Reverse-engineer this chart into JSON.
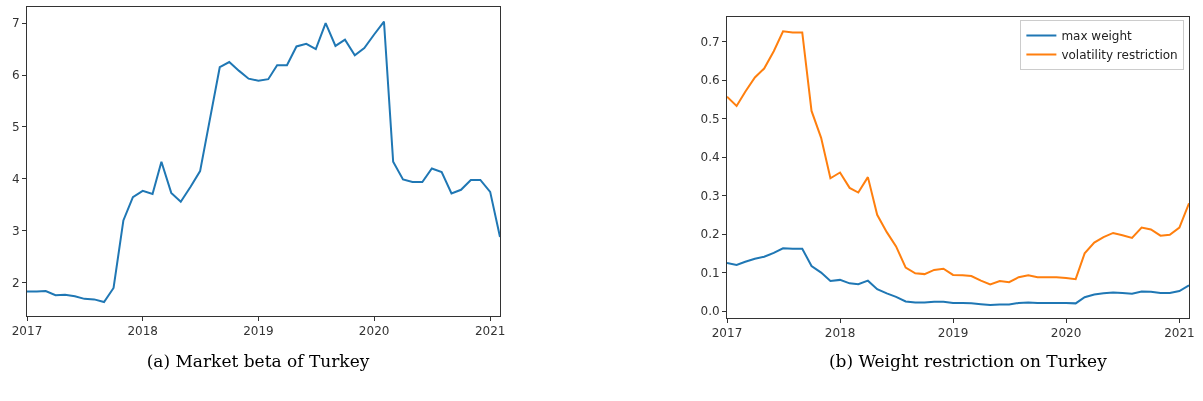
{
  "chart_data": [
    {
      "type": "line",
      "title": "(a) Market beta of Turkey",
      "x": [
        "2017-01",
        "2017-02",
        "2017-03",
        "2017-04",
        "2017-05",
        "2017-06",
        "2017-07",
        "2017-08",
        "2017-09",
        "2017-10",
        "2017-11",
        "2017-12",
        "2018-01",
        "2018-02",
        "2018-03",
        "2018-04",
        "2018-05",
        "2018-06",
        "2018-07",
        "2018-08",
        "2018-09",
        "2018-10",
        "2018-11",
        "2018-12",
        "2019-01",
        "2019-02",
        "2019-03",
        "2019-04",
        "2019-05",
        "2019-06",
        "2019-07",
        "2019-08",
        "2019-09",
        "2019-10",
        "2019-11",
        "2019-12",
        "2020-01",
        "2020-02",
        "2020-03",
        "2020-04",
        "2020-05",
        "2020-06",
        "2020-07",
        "2020-08",
        "2020-09",
        "2020-10",
        "2020-11",
        "2020-12",
        "2021-01",
        "2021-02"
      ],
      "series": [
        {
          "color": "#1f77b4",
          "values": [
            1.83,
            1.83,
            1.84,
            1.76,
            1.77,
            1.74,
            1.69,
            1.68,
            1.63,
            1.9,
            3.2,
            3.65,
            3.77,
            3.71,
            4.33,
            3.73,
            3.56,
            3.85,
            4.15,
            5.15,
            6.15,
            6.25,
            6.08,
            5.93,
            5.89,
            5.92,
            6.19,
            6.19,
            6.55,
            6.6,
            6.5,
            7.0,
            6.56,
            6.68,
            6.38,
            6.52,
            6.78,
            7.03,
            4.33,
            3.99,
            3.94,
            3.94,
            4.2,
            4.13,
            3.72,
            3.79,
            3.98,
            3.98,
            3.75,
            2.88
          ]
        }
      ],
      "xlim": [
        "2017-01",
        "2021-02"
      ],
      "xticks": [
        "2017",
        "2018",
        "2019",
        "2020",
        "2021"
      ],
      "ylim": [
        1.36,
        7.31
      ],
      "yticks": [
        2,
        3,
        4,
        5,
        6,
        7
      ],
      "grid": false,
      "legend": false,
      "line_style": "solid",
      "marker": "none"
    },
    {
      "type": "line",
      "title": "(b) Weight restriction on Turkey",
      "x": [
        "2017-01",
        "2017-02",
        "2017-03",
        "2017-04",
        "2017-05",
        "2017-06",
        "2017-07",
        "2017-08",
        "2017-09",
        "2017-10",
        "2017-11",
        "2017-12",
        "2018-01",
        "2018-02",
        "2018-03",
        "2018-04",
        "2018-05",
        "2018-06",
        "2018-07",
        "2018-08",
        "2018-09",
        "2018-10",
        "2018-11",
        "2018-12",
        "2019-01",
        "2019-02",
        "2019-03",
        "2019-04",
        "2019-05",
        "2019-06",
        "2019-07",
        "2019-08",
        "2019-09",
        "2019-10",
        "2019-11",
        "2019-12",
        "2020-01",
        "2020-02",
        "2020-03",
        "2020-04",
        "2020-05",
        "2020-06",
        "2020-07",
        "2020-08",
        "2020-09",
        "2020-10",
        "2020-11",
        "2020-12",
        "2021-01",
        "2021-02"
      ],
      "series": [
        {
          "name": "max weight",
          "color": "#1f77b4",
          "values": [
            0.125,
            0.12,
            0.128,
            0.136,
            0.141,
            0.151,
            0.163,
            0.162,
            0.162,
            0.117,
            0.1,
            0.078,
            0.081,
            0.072,
            0.07,
            0.079,
            0.057,
            0.046,
            0.037,
            0.025,
            0.022,
            0.022,
            0.024,
            0.024,
            0.021,
            0.021,
            0.02,
            0.018,
            0.016,
            0.017,
            0.017,
            0.021,
            0.022,
            0.021,
            0.021,
            0.021,
            0.021,
            0.02,
            0.036,
            0.043,
            0.046,
            0.048,
            0.047,
            0.045,
            0.051,
            0.05,
            0.047,
            0.047,
            0.052,
            0.067
          ]
        },
        {
          "name": "volatility restriction",
          "color": "#ff7f0e",
          "values": [
            0.557,
            0.533,
            0.57,
            0.607,
            0.63,
            0.675,
            0.727,
            0.724,
            0.724,
            0.52,
            0.45,
            0.345,
            0.36,
            0.32,
            0.308,
            0.348,
            0.25,
            0.205,
            0.168,
            0.113,
            0.098,
            0.096,
            0.107,
            0.11,
            0.094,
            0.093,
            0.091,
            0.079,
            0.069,
            0.078,
            0.075,
            0.088,
            0.093,
            0.088,
            0.088,
            0.088,
            0.086,
            0.083,
            0.15,
            0.178,
            0.192,
            0.203,
            0.197,
            0.19,
            0.217,
            0.212,
            0.196,
            0.198,
            0.217,
            0.28
          ]
        }
      ],
      "xlim": [
        "2017-01",
        "2021-02"
      ],
      "xticks": [
        "2017",
        "2018",
        "2019",
        "2020",
        "2021"
      ],
      "ylim": [
        -0.018,
        0.764
      ],
      "yticks": [
        {
          "value": 0,
          "label": "0.0"
        },
        0.1,
        0.2,
        0.3,
        0.4,
        0.5,
        0.6,
        0.7
      ],
      "grid": false,
      "legend": "top right",
      "line_style": "solid",
      "marker": "none"
    }
  ]
}
